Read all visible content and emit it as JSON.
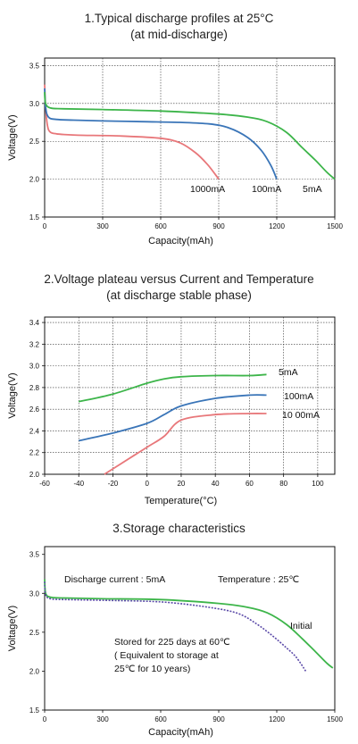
{
  "chart_data": [
    {
      "type": "line",
      "title_lines": [
        "1.Typical discharge profiles at 25°C",
        "(at mid-discharge)"
      ],
      "xlabel": "Capacity(mAh)",
      "ylabel": "Voltage(V)",
      "xlim": [
        0,
        1500
      ],
      "ylim": [
        1.5,
        3.6
      ],
      "xticks": [
        0,
        300,
        600,
        900,
        1200,
        1500
      ],
      "yticks": [
        1.5,
        2.0,
        2.5,
        3.0,
        3.5
      ],
      "xtick_labels": [
        "0",
        "300",
        "600",
        "900",
        "1200",
        "1500"
      ],
      "ytick_labels": [
        "1.5",
        "2.0",
        "2.5",
        "3.0",
        "3.5"
      ],
      "grid": true,
      "series": [
        {
          "name": "1000mA",
          "color": "#e8777a",
          "x": [
            0,
            5,
            15,
            30,
            60,
            100,
            200,
            400,
            600,
            700,
            780,
            840,
            880,
            900
          ],
          "y": [
            3.25,
            2.95,
            2.7,
            2.62,
            2.6,
            2.59,
            2.58,
            2.57,
            2.54,
            2.48,
            2.35,
            2.2,
            2.07,
            2.0
          ]
        },
        {
          "name": "100mA",
          "color": "#3a75b8",
          "x": [
            0,
            5,
            20,
            60,
            150,
            300,
            500,
            700,
            850,
            950,
            1050,
            1120,
            1170,
            1200
          ],
          "y": [
            3.2,
            2.95,
            2.82,
            2.79,
            2.78,
            2.77,
            2.76,
            2.75,
            2.73,
            2.68,
            2.55,
            2.38,
            2.18,
            2.0
          ]
        },
        {
          "name": "5mA",
          "color": "#3db54a",
          "x": [
            0,
            5,
            30,
            100,
            300,
            600,
            900,
            1050,
            1150,
            1250,
            1330,
            1400,
            1460,
            1500
          ],
          "y": [
            3.15,
            3.0,
            2.94,
            2.93,
            2.92,
            2.9,
            2.86,
            2.82,
            2.76,
            2.62,
            2.42,
            2.25,
            2.09,
            2.0
          ]
        }
      ],
      "annotations": [
        "1000mA",
        "100mA",
        "5mA"
      ]
    },
    {
      "type": "line",
      "title_lines": [
        "2.Voltage plateau versus Current and Temperature",
        "(at discharge stable phase)"
      ],
      "xlabel": "Temperature(°C)",
      "ylabel": "Voltage(V)",
      "xlim": [
        -60,
        110
      ],
      "ylim": [
        2.0,
        3.45
      ],
      "xticks": [
        -60,
        -40,
        -20,
        0,
        20,
        40,
        60,
        80,
        100
      ],
      "yticks": [
        2.0,
        2.2,
        2.4,
        2.6,
        2.8,
        3.0,
        3.2,
        3.4
      ],
      "xtick_labels": [
        "-60",
        "-40",
        "-20",
        "0",
        "20",
        "40",
        "60",
        "80",
        "100"
      ],
      "ytick_labels": [
        "2.0",
        "2.2",
        "2.4",
        "2.6",
        "2.8",
        "3.0",
        "3.2",
        "3.4"
      ],
      "grid": true,
      "series": [
        {
          "name": "5mA",
          "color": "#3db54a",
          "x": [
            -40,
            -20,
            0,
            10,
            20,
            40,
            60,
            70
          ],
          "y": [
            2.67,
            2.74,
            2.84,
            2.88,
            2.9,
            2.91,
            2.91,
            2.92
          ]
        },
        {
          "name": "100mA",
          "color": "#3a75b8",
          "x": [
            -40,
            -20,
            0,
            10,
            20,
            40,
            60,
            70
          ],
          "y": [
            2.31,
            2.38,
            2.47,
            2.55,
            2.63,
            2.7,
            2.73,
            2.73
          ]
        },
        {
          "name": "1000mA",
          "color": "#e8777a",
          "x": [
            -25,
            -15,
            0,
            10,
            20,
            40,
            60,
            70
          ],
          "y": [
            2.0,
            2.1,
            2.25,
            2.35,
            2.5,
            2.55,
            2.56,
            2.56
          ]
        }
      ],
      "annotations": [
        "5mA",
        "100mA",
        "10 00mA"
      ]
    },
    {
      "type": "line",
      "title_lines": [
        "3.Storage characteristics"
      ],
      "xlabel": "Capacity(mAh)",
      "ylabel": "Voltage(V)",
      "xlim": [
        0,
        1500
      ],
      "ylim": [
        1.5,
        3.6
      ],
      "xticks": [
        0,
        300,
        600,
        900,
        1200,
        1500
      ],
      "yticks": [
        1.5,
        2.0,
        2.5,
        3.0,
        3.5
      ],
      "xtick_labels": [
        "0",
        "300",
        "600",
        "900",
        "1200",
        "1500"
      ],
      "ytick_labels": [
        "1.5",
        "2.0",
        "2.5",
        "3.0",
        "3.5"
      ],
      "grid": false,
      "series": [
        {
          "name": "Initial",
          "color": "#3db54a",
          "x": [
            0,
            5,
            30,
            100,
            300,
            600,
            900,
            1050,
            1150,
            1250,
            1330,
            1400,
            1460,
            1490
          ],
          "y": [
            3.18,
            3.0,
            2.95,
            2.94,
            2.93,
            2.92,
            2.87,
            2.82,
            2.75,
            2.6,
            2.42,
            2.25,
            2.1,
            2.04
          ]
        },
        {
          "name": "Stored for 225 days at 60℃",
          "color": "#5b4aa8",
          "dashed": true,
          "x": [
            0,
            5,
            30,
            100,
            300,
            600,
            850,
            1000,
            1100,
            1180,
            1250,
            1300,
            1350
          ],
          "y": [
            3.15,
            2.98,
            2.93,
            2.92,
            2.91,
            2.89,
            2.82,
            2.74,
            2.6,
            2.45,
            2.3,
            2.18,
            2.0
          ]
        }
      ],
      "annotations": [
        "Discharge current : 5mA",
        "Temperature : 25℃",
        "Initial",
        "Stored for 225 days at 60℃",
        "( Equivalent to storage at",
        "25℃ for 10 years)"
      ]
    }
  ]
}
